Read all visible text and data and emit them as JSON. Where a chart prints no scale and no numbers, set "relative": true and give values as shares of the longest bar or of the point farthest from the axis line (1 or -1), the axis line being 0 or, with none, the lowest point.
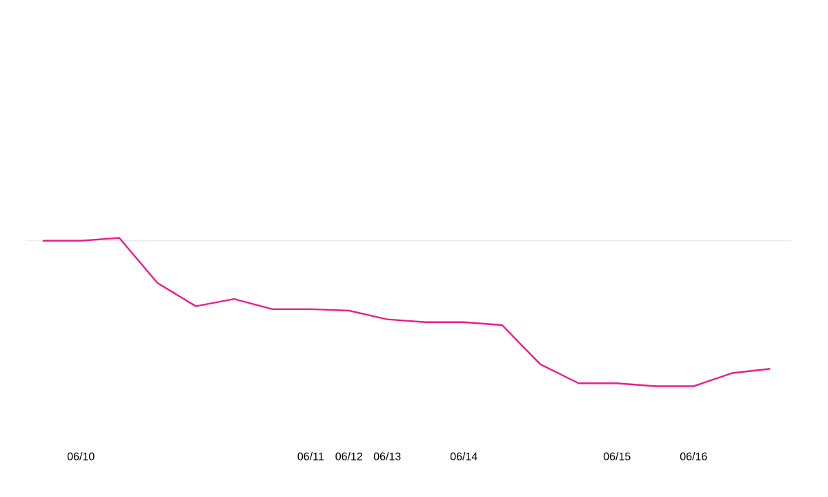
{
  "chart_data": {
    "type": "line",
    "relative": true,
    "categories": [
      null,
      "06/10",
      null,
      null,
      null,
      null,
      null,
      "06/11",
      "06/12",
      "06/13",
      null,
      "06/14",
      null,
      null,
      null,
      "06/15",
      null,
      "06/16",
      null,
      null
    ],
    "series": [
      {
        "color": "#ec1c8c",
        "values": [
          0,
          0,
          0.02,
          -0.29,
          -0.45,
          -0.4,
          -0.47,
          -0.47,
          -0.48,
          -0.54,
          -0.56,
          -0.56,
          -0.58,
          -0.85,
          -0.98,
          -0.98,
          -1,
          -1,
          -0.91,
          -0.88
        ]
      }
    ],
    "marker": "none"
  }
}
